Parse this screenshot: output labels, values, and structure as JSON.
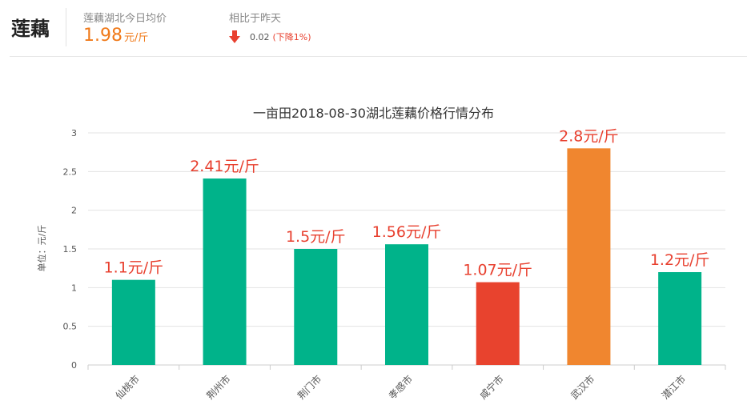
{
  "header": {
    "product": "莲藕",
    "price_label": "莲藕湖北今日均价",
    "price_value": "1.98",
    "price_unit": "元/斤",
    "compare_label": "相比于昨天",
    "change_value": "0.02",
    "change_pct": "(下降1%)",
    "change_icon": "arrow-down-icon",
    "colors": {
      "price": "#f07a1a",
      "down": "#e8402f"
    }
  },
  "chart_data": {
    "type": "bar",
    "title": "一亩田2018-08-30湖北莲藕价格行情分布",
    "ylabel": "单位：元/斤",
    "xlabel": "",
    "ylim": [
      0,
      3
    ],
    "yticks": [
      "0",
      "0.5",
      "1",
      "1.5",
      "2",
      "2.5",
      "3"
    ],
    "grid": true,
    "categories": [
      "仙桃市",
      "荆州市",
      "荆门市",
      "孝感市",
      "咸宁市",
      "武汉市",
      "潜江市"
    ],
    "values": [
      1.1,
      2.41,
      1.5,
      1.56,
      1.07,
      2.8,
      1.2
    ],
    "data_labels": [
      "1.1元/斤",
      "2.41元/斤",
      "1.5元/斤",
      "1.56元/斤",
      "1.07元/斤",
      "2.8元/斤",
      "1.2元/斤"
    ],
    "colors": [
      "#00b38a",
      "#00b38a",
      "#00b38a",
      "#00b38a",
      "#e8432e",
      "#f0862f",
      "#00b38a"
    ],
    "label_color": "#e8402f"
  }
}
